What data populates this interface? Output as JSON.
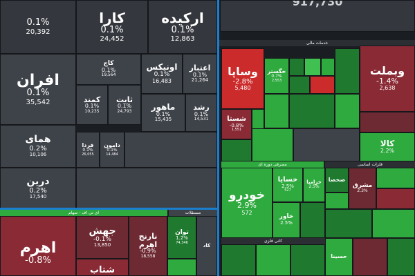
{
  "colors": {
    "red": "#cc2b2b",
    "green": "#2faa3f",
    "neutral": "#3e4249",
    "divider": "#1b7fd0"
  },
  "top": [
    {
      "pct": "0.1%",
      "vol": "20,392"
    },
    {
      "name": "کارا",
      "pct": "0.1%",
      "vol": "24,452"
    },
    {
      "name": "ارکیده",
      "pct": "0.1%",
      "vol": "12,863"
    },
    {
      "vol": "917,730"
    }
  ],
  "left": [
    {
      "name": "افران",
      "pct": "0.1%",
      "vol": "35,542"
    },
    {
      "name": "کاج",
      "pct": "0.1%",
      "vol": "19,564"
    },
    {
      "name": "اونیکس",
      "pct": "0.1%",
      "vol": "16,483"
    },
    {
      "name": "اعتبار",
      "pct": "0.1%",
      "vol": "21,264"
    },
    {
      "name": "کمند",
      "pct": "0.1%",
      "vol": "10,235"
    },
    {
      "name": "ثابت",
      "pct": "0.1%",
      "vol": "24,793"
    },
    {
      "name": "ماهور",
      "pct": "0.1%",
      "vol": "15,435"
    },
    {
      "name": "رشد",
      "pct": "0.1%",
      "vol": "14,531"
    },
    {
      "name": "همای",
      "pct": "0.2%",
      "vol": "10,106"
    },
    {
      "name": "فردا",
      "pct": "0.1%",
      "vol": "26,055"
    },
    {
      "name": "دامون",
      "pct": "0.1%",
      "vol": "14,484"
    },
    {
      "name": "درین",
      "pct": "0.2%",
      "vol": "17,540"
    }
  ],
  "bottom_left": {
    "header": "ای تی اف - سهام",
    "header2": "مستقلات",
    "tiles": [
      {
        "name": "جهش",
        "pct": "-0.1%",
        "vol": "13,850"
      },
      {
        "name": "نارنج اهرم",
        "pct": "-0.9%",
        "vol": "18,558"
      },
      {
        "name": "توان",
        "pct": "1.2%",
        "vol": "74,346"
      },
      {
        "name": "اهرم",
        "pct": "-0.8%"
      },
      {
        "name": "شتاب"
      },
      {
        "name": "کاد"
      }
    ]
  },
  "right": {
    "header_top": "خدمات مالی",
    "header_cars": "مصرفی دوره ای",
    "header_metal": "فلزات اساسی",
    "header_nonmetal": "کانی فلزی",
    "tiles": [
      {
        "name": "وساپا",
        "pct": "-2.8%",
        "vol": "5,480"
      },
      {
        "name": "خگستر",
        "pct": "0.7%",
        "vol": "2,553"
      },
      {
        "name": "وبملت",
        "pct": "-1.4%",
        "vol": "2,638"
      },
      {
        "name": "شستا",
        "pct": "-0.8%",
        "vol": "1,551"
      },
      {
        "name": "کالا",
        "pct": "2.2%"
      },
      {
        "name": "خودرو",
        "pct": "2.9%",
        "vol": "572"
      },
      {
        "name": "خسایا",
        "pct": "2.5%",
        "vol": "527"
      },
      {
        "name": "خزامیا",
        "pct": "2.5%"
      },
      {
        "name": "خاور",
        "pct": "2.5%"
      },
      {
        "name": "مشرق",
        "pct": "2.3%"
      },
      {
        "name": "صخصا"
      },
      {
        "name": "حسینا"
      }
    ]
  }
}
